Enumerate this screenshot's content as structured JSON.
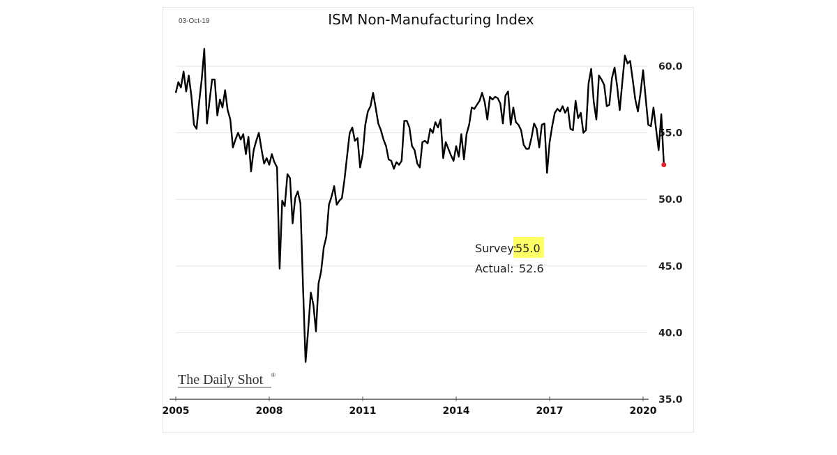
{
  "chart_data": {
    "type": "line",
    "title": "ISM Non-Manufacturing Index",
    "date_label": "03-Oct-19",
    "xlabel": "",
    "ylabel": "",
    "x_range": [
      2005,
      2020
    ],
    "ylim": [
      35,
      60
    ],
    "y_ticks": [
      "60.0",
      "55.0",
      "50.0",
      "45.0",
      "40.0",
      "35.0"
    ],
    "y_tick_values": [
      60,
      55,
      50,
      45,
      40,
      35
    ],
    "x_ticks": [
      "2005",
      "2008",
      "2011",
      "2014",
      "2017",
      "2020"
    ],
    "x_tick_values": [
      2005,
      2008,
      2011,
      2014,
      2017,
      2020
    ],
    "grid": true,
    "y_axis_side": "right",
    "series": [
      {
        "name": "ISM Non-Manufacturing Index",
        "color": "#000000",
        "start": "2005-01",
        "frequency": "monthly",
        "values": [
          58.0,
          58.8,
          58.4,
          59.6,
          58.1,
          59.3,
          57.8,
          55.6,
          55.3,
          57.3,
          59.0,
          61.3,
          55.7,
          57.4,
          59.0,
          59.0,
          56.3,
          57.5,
          56.9,
          58.2,
          56.7,
          56.0,
          53.9,
          54.5,
          55.0,
          54.5,
          54.9,
          53.4,
          54.7,
          52.1,
          53.7,
          54.4,
          55.0,
          53.8,
          52.7,
          53.1,
          52.6,
          53.4,
          52.8,
          52.4,
          44.8,
          49.9,
          49.5,
          51.9,
          51.6,
          48.2,
          50.1,
          50.6,
          49.7,
          43.5,
          37.8,
          40.2,
          43.0,
          42.1,
          40.1,
          43.7,
          44.6,
          46.4,
          47.2,
          49.6,
          50.2,
          51.0,
          49.6,
          49.9,
          50.1,
          51.5,
          53.3,
          55.0,
          55.4,
          54.4,
          54.6,
          52.4,
          53.4,
          55.6,
          56.6,
          57.0,
          58.0,
          56.9,
          55.7,
          55.2,
          54.5,
          54.0,
          53.0,
          52.9,
          52.3,
          52.8,
          52.6,
          52.9,
          55.9,
          55.9,
          55.4,
          54.0,
          53.7,
          52.7,
          52.4,
          54.3,
          54.4,
          54.2,
          55.3,
          55.0,
          55.8,
          55.4,
          56.0,
          53.1,
          54.3,
          53.8,
          53.3,
          52.9,
          54.0,
          53.2,
          54.9,
          53.0,
          54.9,
          55.6,
          56.9,
          56.8,
          57.1,
          57.4,
          58.0,
          57.3,
          56.0,
          57.7,
          57.5,
          57.7,
          57.6,
          57.2,
          55.7,
          57.8,
          58.1,
          55.6,
          56.9,
          55.8,
          55.6,
          55.2,
          54.1,
          53.8,
          53.8,
          54.6,
          55.7,
          55.3,
          53.9,
          55.6,
          55.7,
          52.0,
          54.3,
          55.5,
          56.5,
          56.8,
          56.6,
          57.0,
          56.5,
          56.9,
          55.3,
          55.2,
          57.4,
          56.1,
          56.5,
          55.0,
          55.2,
          58.7,
          59.8,
          57.3,
          56.0,
          59.3,
          59.0,
          58.6,
          57.0,
          57.1,
          59.1,
          59.9,
          58.5,
          56.7,
          58.8,
          60.8,
          60.2,
          60.4,
          59.0,
          57.5,
          56.6,
          58.0,
          59.7,
          57.6,
          55.6,
          55.5,
          56.9,
          55.3,
          53.7,
          56.4,
          52.6
        ],
        "last_point_marker_color": "#e8202a"
      }
    ],
    "annotations": {
      "survey_label": "Survey:",
      "survey_value": "55.0",
      "survey_highlight_color": "#ffff66",
      "actual_label": "Actual:",
      "actual_value": "52.6"
    },
    "source_label": "The Daily Shot",
    "source_mark": "®"
  }
}
